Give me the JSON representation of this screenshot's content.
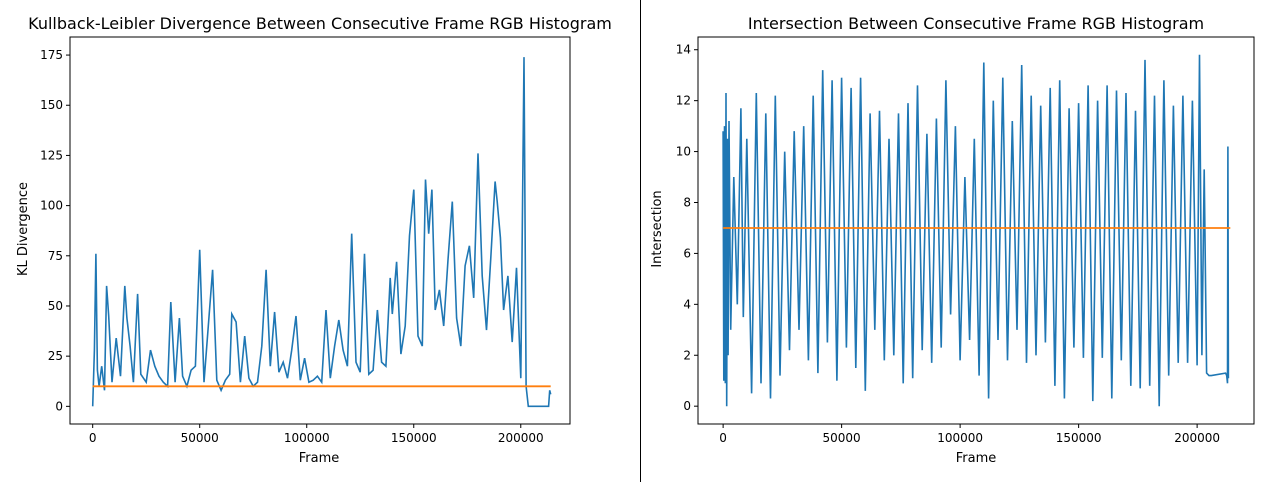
{
  "colors": {
    "series": "#1f77b4",
    "threshold": "#ff7f0e",
    "axis": "#000000"
  },
  "chart_data": [
    {
      "type": "line",
      "title": "Kullback-Leibler Divergence Between Consecutive Frame RGB Histogram",
      "xlabel": "Frame",
      "ylabel": "KL Divergence",
      "xlim": [
        -10600,
        223000
      ],
      "ylim": [
        -8.8,
        184
      ],
      "xticks": [
        0,
        50000,
        100000,
        150000,
        200000
      ],
      "xtick_labels": [
        "0",
        "50000",
        "100000",
        "150000",
        "200000"
      ],
      "yticks": [
        0,
        25,
        50,
        75,
        100,
        125,
        150,
        175
      ],
      "ytick_labels": [
        "0",
        "25",
        "50",
        "75",
        "100",
        "125",
        "150",
        "175"
      ],
      "grid": false,
      "series": [
        {
          "x": [
            0,
            800,
            1500,
            2200,
            3000,
            4200,
            5500,
            6500,
            7500,
            9000,
            11000,
            13000,
            15000,
            16000,
            17500,
            19000,
            21000,
            22500,
            25000,
            27000,
            29000,
            31000,
            33000,
            35000,
            36500,
            38500,
            40500,
            42000,
            44000,
            46000,
            48000,
            50000,
            52000,
            54000,
            56000,
            58000,
            60000,
            62000,
            64000,
            65000,
            67000,
            69000,
            71000,
            73000,
            75000,
            77000,
            79000,
            81000,
            83000,
            85000,
            87000,
            89000,
            91000,
            93000,
            95000,
            97000,
            99000,
            101000,
            103000,
            105000,
            107000,
            109000,
            111000,
            113000,
            115000,
            117000,
            119000,
            121000,
            123000,
            125000,
            127000,
            129000,
            131000,
            133000,
            135000,
            137000,
            139000,
            140000,
            142000,
            144000,
            146000,
            148000,
            150000,
            152000,
            154000,
            155500,
            157000,
            158500,
            160000,
            162000,
            164000,
            166000,
            168000,
            170000,
            172000,
            174000,
            176000,
            178000,
            180000,
            182000,
            184000,
            186000,
            188000,
            189000,
            190500,
            192000,
            194000,
            196000,
            198000,
            200000,
            201500,
            202500,
            203500,
            213000,
            213500,
            214000
          ],
          "y": [
            0,
            28,
            76,
            18,
            10,
            20,
            8,
            60,
            45,
            12,
            34,
            15,
            60,
            44,
            30,
            12,
            56,
            16,
            12,
            28,
            20,
            15,
            12,
            10,
            52,
            12,
            44,
            15,
            10,
            18,
            20,
            78,
            12,
            40,
            68,
            13,
            8,
            13,
            16,
            46,
            42,
            12,
            35,
            14,
            10,
            12,
            30,
            68,
            20,
            47,
            17,
            22,
            14,
            28,
            45,
            13,
            24,
            12,
            13,
            15,
            12,
            48,
            14,
            30,
            43,
            28,
            20,
            86,
            22,
            17,
            76,
            16,
            18,
            48,
            22,
            20,
            64,
            46,
            72,
            26,
            40,
            85,
            108,
            35,
            30,
            113,
            86,
            108,
            48,
            58,
            40,
            73,
            102,
            44,
            30,
            70,
            80,
            54,
            126,
            65,
            38,
            74,
            112,
            102,
            84,
            48,
            65,
            32,
            69,
            14,
            174,
            10,
            0,
            0,
            8,
            6
          ]
        },
        {
          "x": [
            0,
            214000
          ],
          "y": [
            10,
            10
          ]
        }
      ]
    },
    {
      "type": "line",
      "title": "Intersection Between Consecutive Frame RGB Histogram",
      "xlabel": "Frame",
      "ylabel": "Intersection",
      "xlim": [
        -10600,
        224000
      ],
      "ylim": [
        -0.7,
        14.5
      ],
      "xticks": [
        0,
        50000,
        100000,
        150000,
        200000
      ],
      "xtick_labels": [
        "0",
        "50000",
        "100000",
        "150000",
        "200000"
      ],
      "yticks": [
        0,
        2,
        4,
        6,
        8,
        10,
        12,
        14
      ],
      "ytick_labels": [
        "0",
        "2",
        "4",
        "6",
        "8",
        "10",
        "12",
        "14"
      ],
      "grid": false,
      "series": [
        {
          "x": [
            0,
            300,
            600,
            900,
            1200,
            1500,
            1800,
            2100,
            2500,
            3200,
            4500,
            6000,
            7500,
            8500,
            10000,
            12000,
            14000,
            16000,
            18000,
            20000,
            22000,
            24000,
            26000,
            28000,
            30000,
            32000,
            34000,
            36000,
            38000,
            40000,
            42000,
            44000,
            46000,
            48000,
            50000,
            52000,
            54000,
            56000,
            58000,
            60000,
            62000,
            64000,
            66000,
            68000,
            70000,
            72000,
            74000,
            76000,
            78000,
            80000,
            82000,
            84000,
            86000,
            88000,
            90000,
            92000,
            94000,
            96000,
            98000,
            100000,
            102000,
            104000,
            106000,
            108000,
            110000,
            112000,
            114000,
            116000,
            118000,
            120000,
            122000,
            124000,
            126000,
            128000,
            130000,
            132000,
            134000,
            136000,
            138000,
            140000,
            142000,
            144000,
            146000,
            148000,
            150000,
            152000,
            154000,
            156000,
            158000,
            160000,
            162000,
            164000,
            166000,
            168000,
            170000,
            172000,
            174000,
            176000,
            178000,
            180000,
            182000,
            184000,
            186000,
            188000,
            190000,
            192000,
            194000,
            196000,
            198000,
            200000,
            201000,
            202000,
            203000,
            204000,
            205000,
            206000,
            212000,
            212500,
            212800,
            213000,
            213200
          ],
          "y": [
            10.8,
            1.0,
            11.0,
            0.9,
            12.3,
            0.0,
            10.5,
            2.0,
            11.2,
            3.0,
            9.0,
            4.0,
            11.7,
            3.5,
            10.5,
            0.5,
            12.3,
            0.9,
            11.5,
            0.3,
            12.2,
            1.2,
            10.0,
            2.2,
            10.8,
            3.0,
            11.0,
            1.8,
            12.2,
            1.3,
            13.2,
            2.5,
            12.8,
            1.0,
            12.9,
            2.3,
            12.5,
            1.5,
            12.9,
            0.6,
            11.5,
            3.0,
            11.6,
            1.8,
            10.5,
            2.0,
            11.5,
            0.9,
            11.9,
            1.1,
            12.6,
            2.2,
            10.7,
            1.7,
            11.3,
            2.3,
            12.8,
            3.6,
            11.0,
            1.8,
            9.0,
            2.6,
            10.5,
            1.2,
            13.5,
            0.3,
            12.0,
            2.6,
            12.9,
            1.8,
            11.2,
            3.0,
            13.4,
            1.7,
            12.2,
            2.0,
            11.8,
            2.5,
            12.5,
            0.8,
            12.8,
            0.3,
            11.7,
            2.3,
            11.9,
            1.9,
            12.6,
            0.2,
            12.0,
            1.9,
            12.6,
            0.3,
            12.4,
            1.8,
            12.3,
            0.8,
            11.6,
            0.7,
            13.6,
            0.8,
            12.2,
            0.0,
            12.8,
            1.2,
            11.8,
            1.7,
            12.2,
            1.7,
            12.0,
            1.6,
            13.8,
            2.0,
            9.3,
            1.3,
            1.2,
            1.2,
            1.3,
            1.2,
            0.9,
            10.2,
            1.1
          ]
        },
        {
          "x": [
            0,
            214000
          ],
          "y": [
            7.0,
            7.0
          ]
        }
      ]
    }
  ]
}
